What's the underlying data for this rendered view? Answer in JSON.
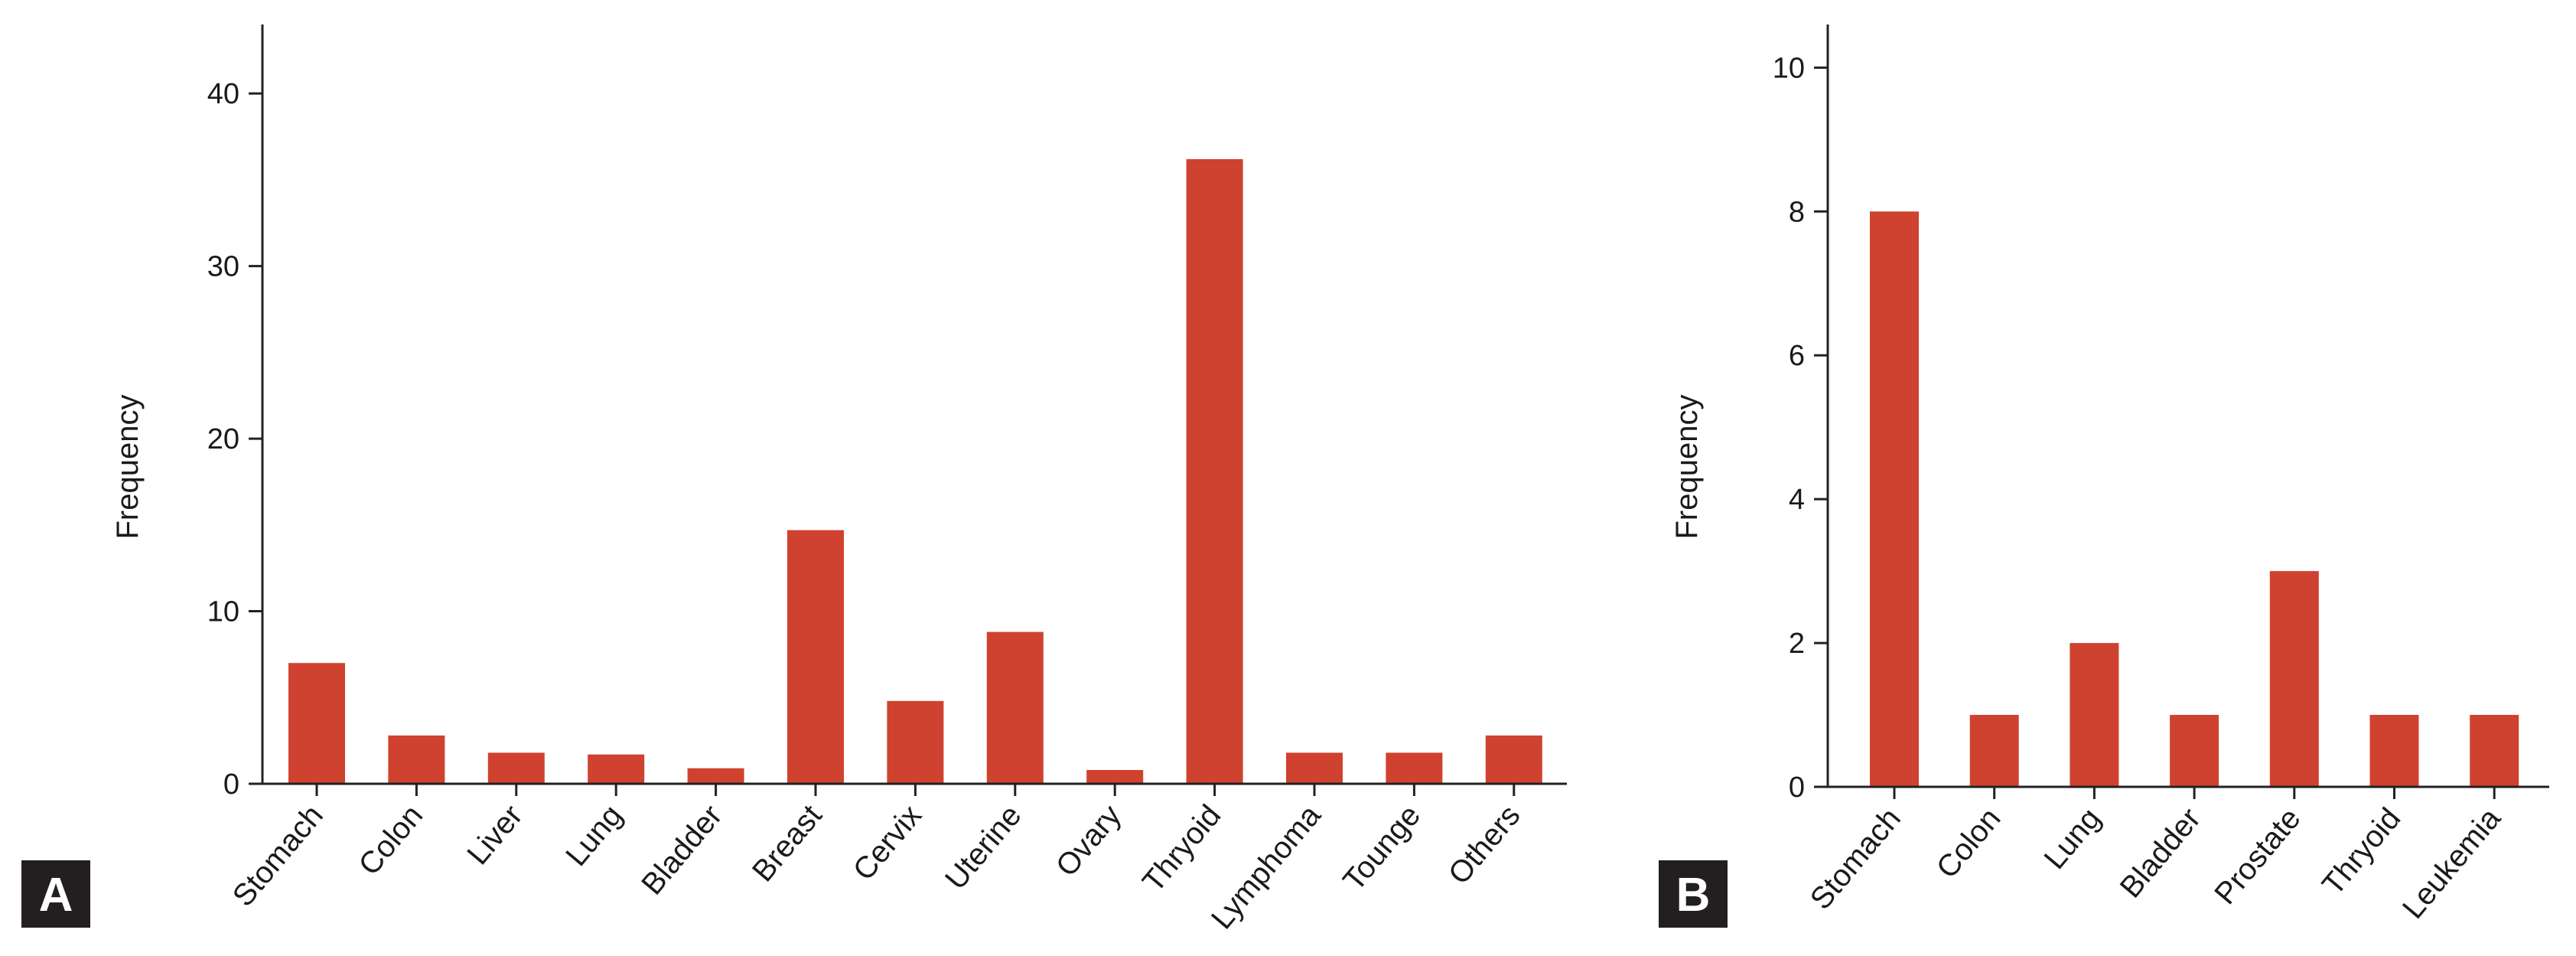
{
  "bar_color": "#cf4230",
  "axis_color": "#222222",
  "panel_label_bg": "#231f20",
  "chart_data": [
    {
      "type": "bar",
      "panel_label": "A",
      "ylabel": "Frequency",
      "ylim": [
        0,
        44
      ],
      "yticks": [
        0,
        10,
        20,
        30,
        40
      ],
      "categories": [
        "Stomach",
        "Colon",
        "Liver",
        "Lung",
        "Bladder",
        "Breast",
        "Cervix",
        "Uterine",
        "Ovary",
        "Thryoid",
        "Lymphoma",
        "Tounge",
        "Others"
      ],
      "values": [
        7,
        2.8,
        1.8,
        1.7,
        0.9,
        14.7,
        4.8,
        8.8,
        0.8,
        36.2,
        1.8,
        1.8,
        2.8
      ]
    },
    {
      "type": "bar",
      "panel_label": "B",
      "ylabel": "Frequency",
      "ylim": [
        0,
        10.6
      ],
      "yticks": [
        0,
        2,
        4,
        6,
        8,
        10
      ],
      "categories": [
        "Stomach",
        "Colon",
        "Lung",
        "Bladder",
        "Prostate",
        "Thryoid",
        "Leukemia"
      ],
      "values": [
        8,
        1,
        2,
        1,
        3,
        1,
        1
      ]
    }
  ]
}
